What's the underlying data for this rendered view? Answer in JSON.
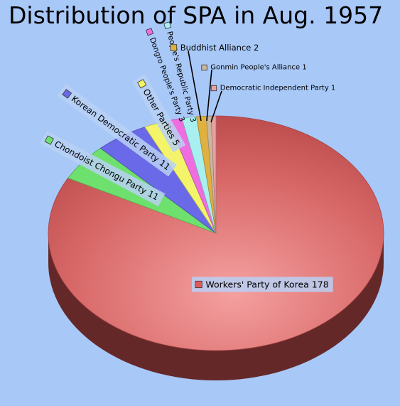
{
  "chart_data": {
    "type": "pie",
    "title": "Distribution of SPA in Aug. 1957",
    "slices": [
      {
        "label": "Workers' Party of Korea",
        "value": 178,
        "color": "#e05a5a",
        "display": "Workers' Party of Korea 178"
      },
      {
        "label": "Chondoist Chongu Party",
        "value": 11,
        "color": "#6ee06e",
        "display": "Chondoist Chongu Party 11"
      },
      {
        "label": "Korean Democratic Party",
        "value": 11,
        "color": "#6a6ae8",
        "display": "Korean Democratic Party 11"
      },
      {
        "label": "Other Parties",
        "value": 5,
        "color": "#f4f46a",
        "display": "Other Parties 5"
      },
      {
        "label": "Dongro People's Party",
        "value": 3,
        "color": "#ee6ee0",
        "display": "Dongro People's Party 3"
      },
      {
        "label": "People's Republic Party",
        "value": 3,
        "color": "#a8f0f0",
        "display": "People's Republic Party 3"
      },
      {
        "label": "Buddhist Alliance",
        "value": 2,
        "color": "#e0b040",
        "display": "Buddhist Alliance 2"
      },
      {
        "label": "Gonmin People's Alliance",
        "value": 1,
        "color": "#c8b8a0",
        "display": "Gonmin People's Alliance 1"
      },
      {
        "label": "Democratic Independent Party",
        "value": 1,
        "color": "#e8a0a0",
        "display": "Democratic Independent Party 1"
      }
    ],
    "legend": "none"
  }
}
